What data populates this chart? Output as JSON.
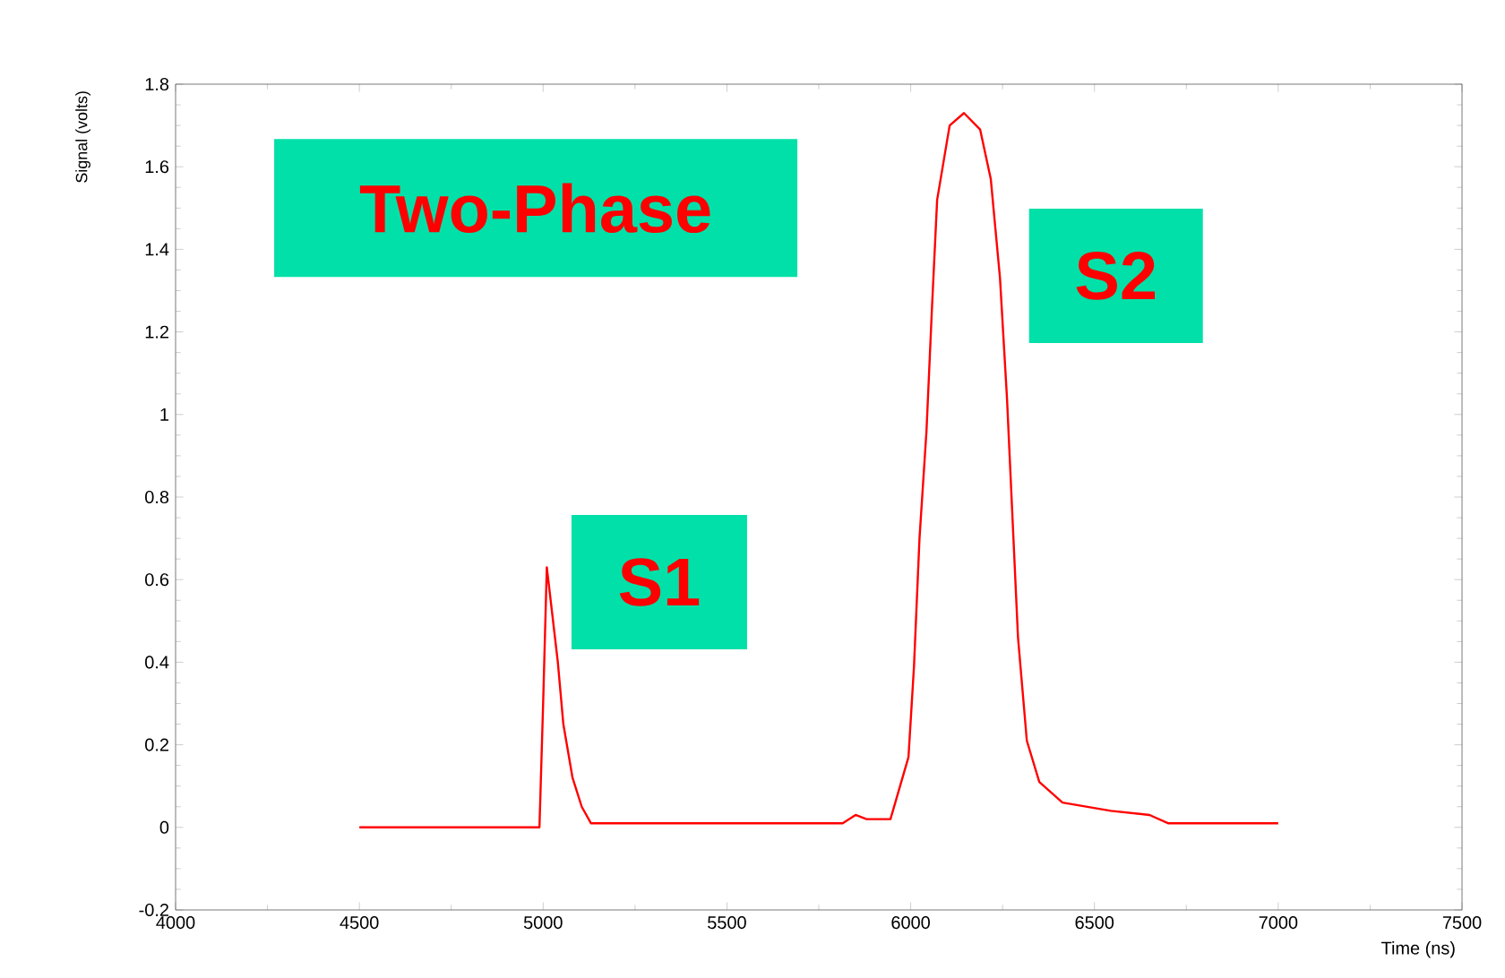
{
  "chart_data": {
    "type": "line",
    "xlabel": "Time (ns)",
    "ylabel": "Signal (volts)",
    "annotations": [
      "Two-Phase",
      "S1",
      "S2"
    ],
    "xlim": [
      4000,
      7500
    ],
    "ylim": [
      -0.2,
      1.8
    ],
    "xticks": [
      4000,
      4500,
      5000,
      5500,
      6000,
      6500,
      7000,
      7500
    ],
    "yticks": [
      -0.2,
      0,
      0.2,
      0.4,
      0.6,
      0.8,
      1,
      1.2,
      1.4,
      1.6,
      1.8
    ],
    "marker": "none",
    "line_style": "solid",
    "series": [
      {
        "color": "#ff0000",
        "x": [
          4500,
          4990,
          5000,
          5010,
          5040,
          5055,
          5080,
          5105,
          5130,
          5500,
          5815,
          5850,
          5880,
          5945,
          5994,
          6009,
          6024,
          6043,
          6058,
          6072,
          6106,
          6145,
          6189,
          6218,
          6243,
          6262,
          6277,
          6292,
          6316,
          6350,
          6413,
          6545,
          6650,
          6700,
          7000
        ],
        "values": [
          0,
          0,
          0.3,
          0.63,
          0.4,
          0.25,
          0.12,
          0.05,
          0.01,
          0.01,
          0.01,
          0.03,
          0.02,
          0.02,
          0.17,
          0.39,
          0.7,
          0.96,
          1.26,
          1.52,
          1.7,
          1.73,
          1.69,
          1.57,
          1.33,
          1.04,
          0.75,
          0.46,
          0.21,
          0.11,
          0.06,
          0.04,
          0.03,
          0.01,
          0.01
        ]
      }
    ]
  }
}
